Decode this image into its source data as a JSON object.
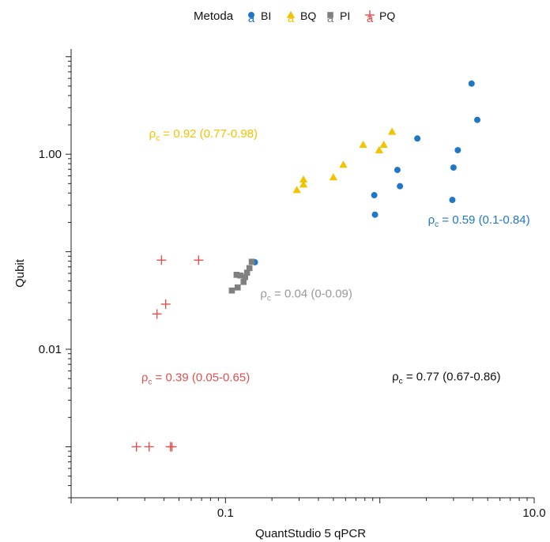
{
  "chart_data": {
    "type": "scatter",
    "xlabel": "QuantStudio 5 qPCR",
    "ylabel": "Qubit",
    "xscale": "log",
    "yscale": "log",
    "xlim": [
      0.01,
      10.0
    ],
    "ylim": [
      0.0003,
      12
    ],
    "xticks": [
      {
        "value": 0.1,
        "label": "0.1"
      },
      {
        "value": 10.0,
        "label": "10.0"
      }
    ],
    "yticks": [
      {
        "value": 0.01,
        "label": "0.01"
      },
      {
        "value": 1.0,
        "label": "1.00"
      }
    ],
    "grid": false,
    "legend": {
      "title": "Metoda",
      "placement": "top-center",
      "entries": [
        {
          "key": "BI",
          "label": "BI",
          "glyph_letter": "a"
        },
        {
          "key": "BQ",
          "label": "BQ",
          "glyph_letter": "a"
        },
        {
          "key": "PI",
          "label": "PI",
          "glyph_letter": "a"
        },
        {
          "key": "PQ",
          "label": "PQ",
          "glyph_letter": "a"
        }
      ]
    },
    "series": [
      {
        "name": "BI",
        "marker": "circle",
        "color": "#1f77c8",
        "points": [
          {
            "x": 3.93,
            "y": 5.3
          },
          {
            "x": 4.28,
            "y": 2.25
          },
          {
            "x": 3.2,
            "y": 1.1
          },
          {
            "x": 1.75,
            "y": 1.45
          },
          {
            "x": 3.0,
            "y": 0.73
          },
          {
            "x": 1.3,
            "y": 0.69
          },
          {
            "x": 1.35,
            "y": 0.47
          },
          {
            "x": 2.95,
            "y": 0.34
          },
          {
            "x": 0.92,
            "y": 0.38
          },
          {
            "x": 0.93,
            "y": 0.24
          },
          {
            "x": 0.155,
            "y": 0.078
          }
        ]
      },
      {
        "name": "BQ",
        "marker": "triangle",
        "color": "#f2c300",
        "points": [
          {
            "x": 1.2,
            "y": 1.7
          },
          {
            "x": 0.78,
            "y": 1.25
          },
          {
            "x": 0.99,
            "y": 1.1
          },
          {
            "x": 1.06,
            "y": 1.25
          },
          {
            "x": 0.58,
            "y": 0.78
          },
          {
            "x": 0.5,
            "y": 0.58
          },
          {
            "x": 0.32,
            "y": 0.55
          },
          {
            "x": 0.32,
            "y": 0.49
          },
          {
            "x": 0.29,
            "y": 0.43
          }
        ]
      },
      {
        "name": "PI",
        "marker": "square",
        "color": "#808080",
        "points": [
          {
            "x": 0.148,
            "y": 0.079
          },
          {
            "x": 0.143,
            "y": 0.068
          },
          {
            "x": 0.138,
            "y": 0.061
          },
          {
            "x": 0.134,
            "y": 0.055
          },
          {
            "x": 0.125,
            "y": 0.057
          },
          {
            "x": 0.118,
            "y": 0.058
          },
          {
            "x": 0.131,
            "y": 0.049
          },
          {
            "x": 0.12,
            "y": 0.043
          },
          {
            "x": 0.11,
            "y": 0.04
          }
        ]
      },
      {
        "name": "PQ",
        "marker": "plus",
        "color": "#e05050",
        "points": [
          {
            "x": 0.0385,
            "y": 0.082
          },
          {
            "x": 0.067,
            "y": 0.082
          },
          {
            "x": 0.041,
            "y": 0.029
          },
          {
            "x": 0.036,
            "y": 0.023
          },
          {
            "x": 0.0265,
            "y": 0.001
          },
          {
            "x": 0.032,
            "y": 0.001
          },
          {
            "x": 0.044,
            "y": 0.001
          },
          {
            "x": 0.045,
            "y": 0.001
          }
        ]
      }
    ],
    "annotations": [
      {
        "series": "BQ",
        "value_text": "= 0.92 (0.77-0.98)",
        "color": "#f2c300",
        "x": 0.032,
        "y": 1.48
      },
      {
        "series": "BI",
        "value_text": "= 0.59 (0.1-0.84)",
        "color": "#1f77c8",
        "x": 2.05,
        "y": 0.195
      },
      {
        "series": "PI",
        "value_text": "= 0.04 (0-0.09)",
        "color": "#999999",
        "x": 0.168,
        "y": 0.034
      },
      {
        "series": "PQ",
        "value_text": "= 0.39 (0.05-0.65)",
        "color": "#e05050",
        "x": 0.0285,
        "y": 0.0047
      },
      {
        "series": "all",
        "value_text": "= 0.77 (0.67-0.86)",
        "color": "#111111",
        "x": 1.2,
        "y": 0.0048
      }
    ],
    "annotation_symbol": "ρ",
    "annotation_subscript": "c"
  }
}
